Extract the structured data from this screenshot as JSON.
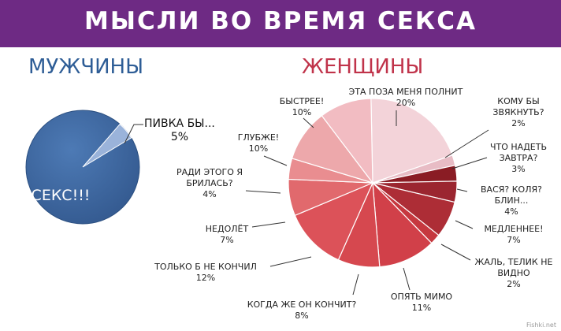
{
  "title": "МЫСЛИ ВО ВРЕМЯ СЕКСА",
  "watermark": "Fishki.net",
  "colors": {
    "banner": "#6e2a84",
    "men_pie": "#3f6aa5",
    "men_slice": "#9ab3da",
    "men_title": "#2e5d96",
    "women_title": "#c0334a"
  },
  "chart_data": [
    {
      "type": "pie",
      "title": "МУЖЧИНЫ",
      "categories": [
        "СЕКС!!!",
        "ПИВКА БЫ..."
      ],
      "values": [
        95,
        5
      ],
      "labels": [
        {
          "text": "СЕКС!!!",
          "pct": ""
        },
        {
          "text": "ПИВКА БЫ...",
          "pct": "5%"
        }
      ]
    },
    {
      "type": "pie",
      "title": "ЖЕНЩИНЫ",
      "categories": [
        "ЭТА ПОЗА МЕНЯ ПОЛНИТ",
        "КОМУ БЫ ЗВЯКНУТЬ?",
        "ЧТО НАДЕТЬ ЗАВТРА?",
        "ВАСЯ? КОЛЯ? БЛИН...",
        "МЕДЛЕННЕЕ!",
        "ЖАЛЬ, ТЕЛИК НЕ ВИДНО",
        "ОПЯТЬ МИМО",
        "КОГДА ЖЕ ОН КОНЧИТ?",
        "ТОЛЬКО Б НЕ КОНЧИЛ",
        "НЕДОЛЁТ",
        "РАДИ ЭТОГО Я БРИЛАСЬ?",
        "ГЛУБЖЕ!",
        "БЫСТРЕЕ!"
      ],
      "values": [
        20,
        2,
        3,
        4,
        7,
        2,
        11,
        8,
        12,
        7,
        4,
        10,
        10
      ],
      "labels": [
        {
          "text": "ЭТА ПОЗА МЕНЯ ПОЛНИТ",
          "pct": "20%"
        },
        {
          "text": "КОМУ БЫ ЗВЯКНУТЬ?",
          "pct": "2%"
        },
        {
          "text": "ЧТО НАДЕТЬ ЗАВТРА?",
          "pct": "3%"
        },
        {
          "text": "ВАСЯ? КОЛЯ? БЛИН...",
          "pct": "4%"
        },
        {
          "text": "МЕДЛЕННЕЕ!",
          "pct": "7%"
        },
        {
          "text": "ЖАЛЬ, ТЕЛИК НЕ ВИДНО",
          "pct": "2%"
        },
        {
          "text": "ОПЯТЬ МИМО",
          "pct": "11%"
        },
        {
          "text": "КОГДА ЖЕ ОН КОНЧИТ?",
          "pct": "8%"
        },
        {
          "text": "ТОЛЬКО Б НЕ КОНЧИЛ",
          "pct": "12%"
        },
        {
          "text": "НЕДОЛЁТ",
          "pct": "7%"
        },
        {
          "text": "РАДИ ЭТОГО Я БРИЛАСЬ?",
          "pct": "4%"
        },
        {
          "text": "ГЛУБЖЕ!",
          "pct": "10%"
        },
        {
          "text": "БЫСТРЕЕ!",
          "pct": "10%"
        }
      ],
      "colors": [
        "#f3d3d9",
        "#e8bcc5",
        "#8a1c24",
        "#9b2630",
        "#ad2d36",
        "#c6383f",
        "#d14049",
        "#d6484f",
        "#dc5259",
        "#e1696d",
        "#e98d90",
        "#eda8ab",
        "#f2bcc2"
      ]
    }
  ]
}
